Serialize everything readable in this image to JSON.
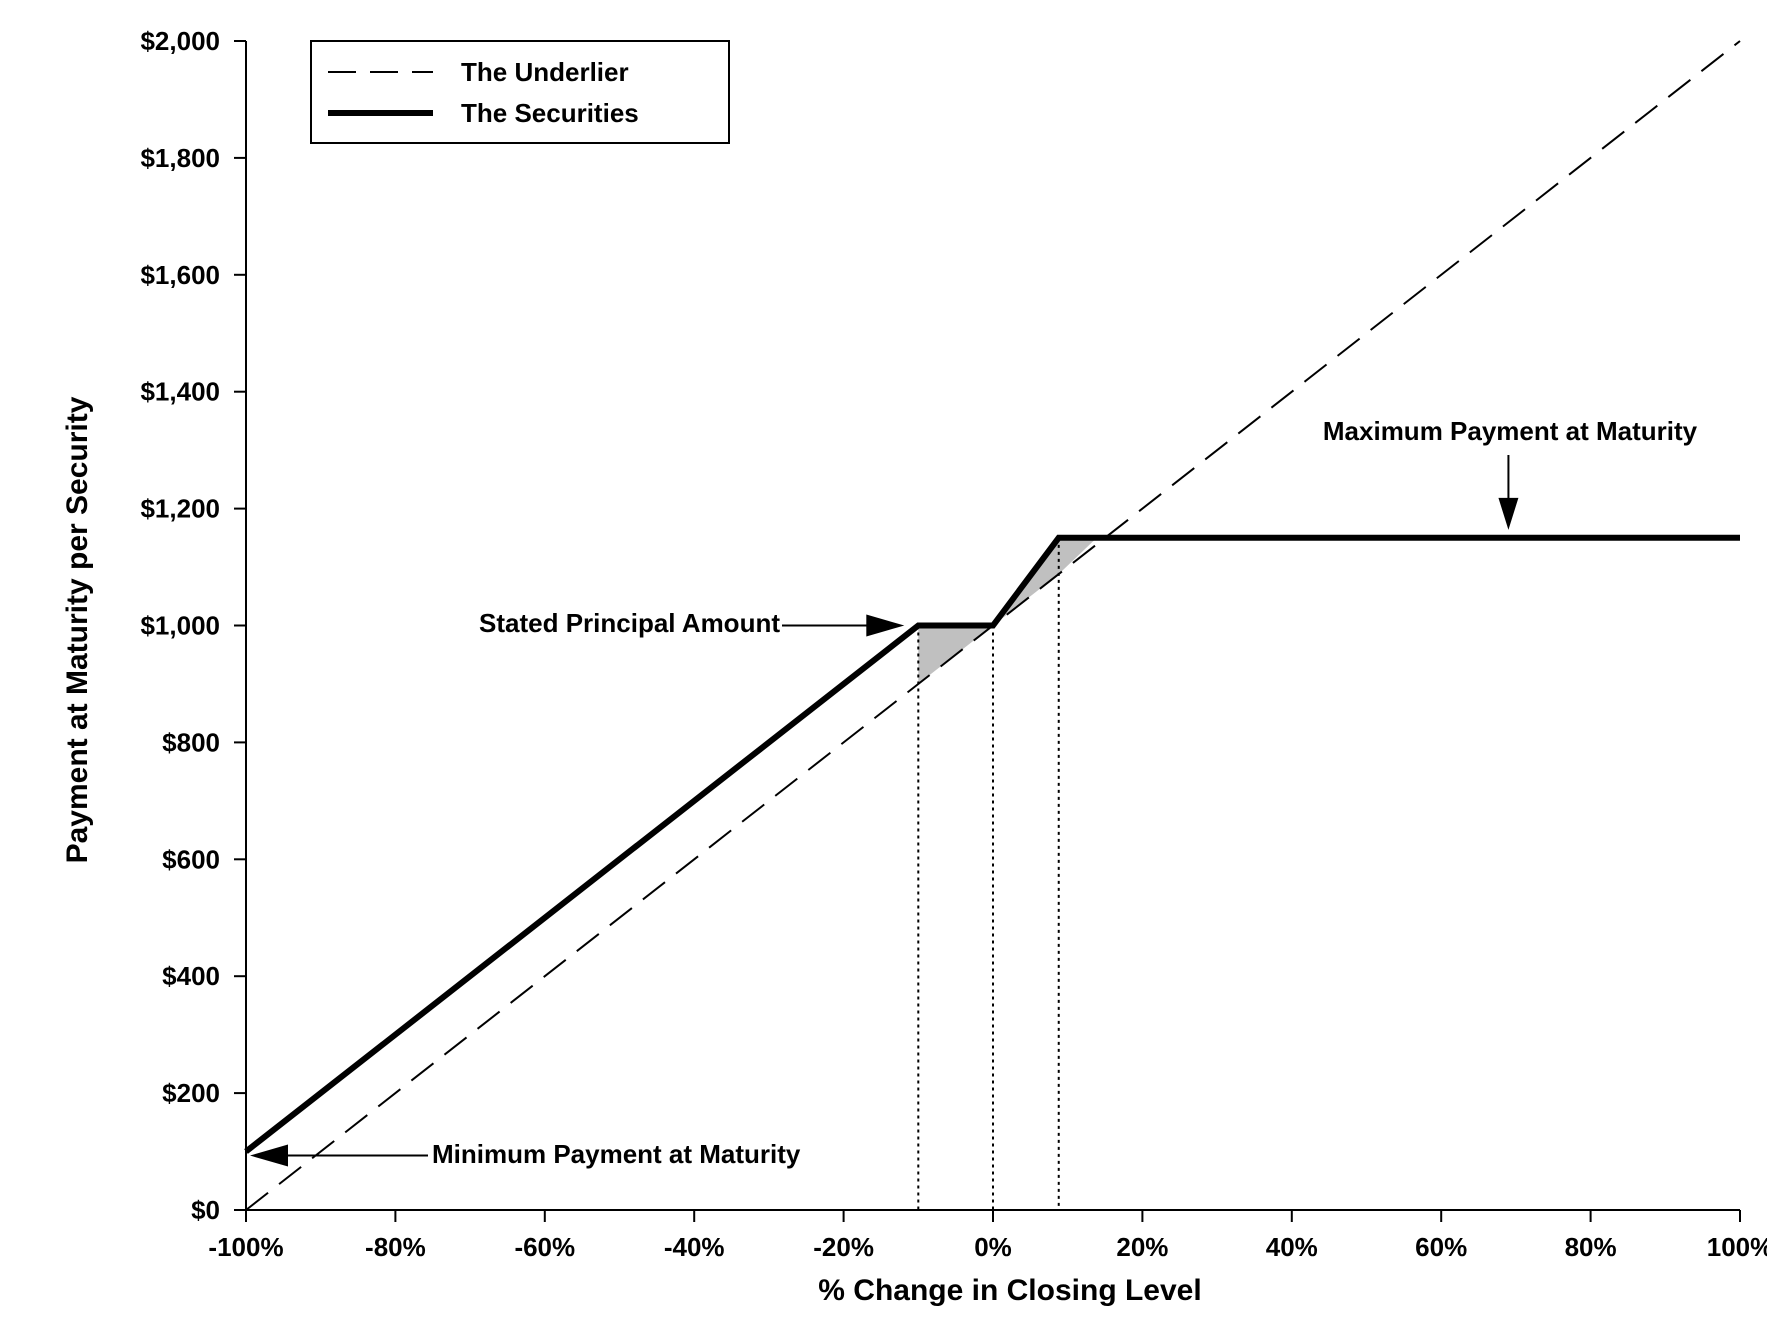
{
  "chart_data": {
    "type": "line",
    "xlabel": "% Change in Closing Level",
    "ylabel": "Payment at Maturity per Security",
    "xlim": [
      -100,
      100
    ],
    "ylim": [
      0,
      2000
    ],
    "x_ticks": [
      -100,
      -80,
      -60,
      -40,
      -20,
      0,
      20,
      40,
      60,
      80,
      100
    ],
    "x_tick_labels": [
      "-100%",
      "-80%",
      "-60%",
      "-40%",
      "-20%",
      "0%",
      "20%",
      "40%",
      "60%",
      "80%",
      "100%"
    ],
    "y_ticks": [
      0,
      200,
      400,
      600,
      800,
      1000,
      1200,
      1400,
      1600,
      1800,
      2000
    ],
    "y_tick_labels": [
      "$0",
      "$200",
      "$400",
      "$600",
      "$800",
      "$1,000",
      "$1,200",
      "$1,400",
      "$1,600",
      "$1,800",
      "$2,000"
    ],
    "grid": false,
    "legend_position": "top-left",
    "series": [
      {
        "name": "The Underlier",
        "style": "dashed",
        "color": "#000000",
        "points": [
          [
            -100,
            0
          ],
          [
            100,
            2000
          ]
        ]
      },
      {
        "name": "The Securities",
        "style": "solid-thick",
        "color": "#000000",
        "points": [
          [
            -100,
            100
          ],
          [
            -10,
            1000
          ],
          [
            0,
            1000
          ],
          [
            8.8,
            1150
          ],
          [
            100,
            1150
          ]
        ]
      }
    ],
    "shaded_regions": [
      {
        "color": "#c0c0c0",
        "points": [
          [
            -10,
            1000
          ],
          [
            0,
            1000
          ],
          [
            -10,
            900
          ]
        ]
      },
      {
        "color": "#c0c0c0",
        "points": [
          [
            0,
            1000
          ],
          [
            8.8,
            1150
          ],
          [
            13.9,
            1150
          ],
          [
            8.8,
            1088
          ]
        ]
      }
    ],
    "reference_lines": [
      {
        "x": -10,
        "y_top": 1000,
        "style": "dotted"
      },
      {
        "x": 0,
        "y_top": 1000,
        "style": "dotted"
      },
      {
        "x": 8.8,
        "y_top": 1150,
        "style": "dotted"
      }
    ],
    "annotations": [
      {
        "text": "Maximum Payment at Maturity",
        "arrow_to": [
          69,
          1150
        ]
      },
      {
        "text": "Stated Principal Amount",
        "arrow_to": [
          -10,
          1000
        ]
      },
      {
        "text": "Minimum Payment at Maturity",
        "arrow_to": [
          -100,
          100
        ]
      }
    ]
  }
}
